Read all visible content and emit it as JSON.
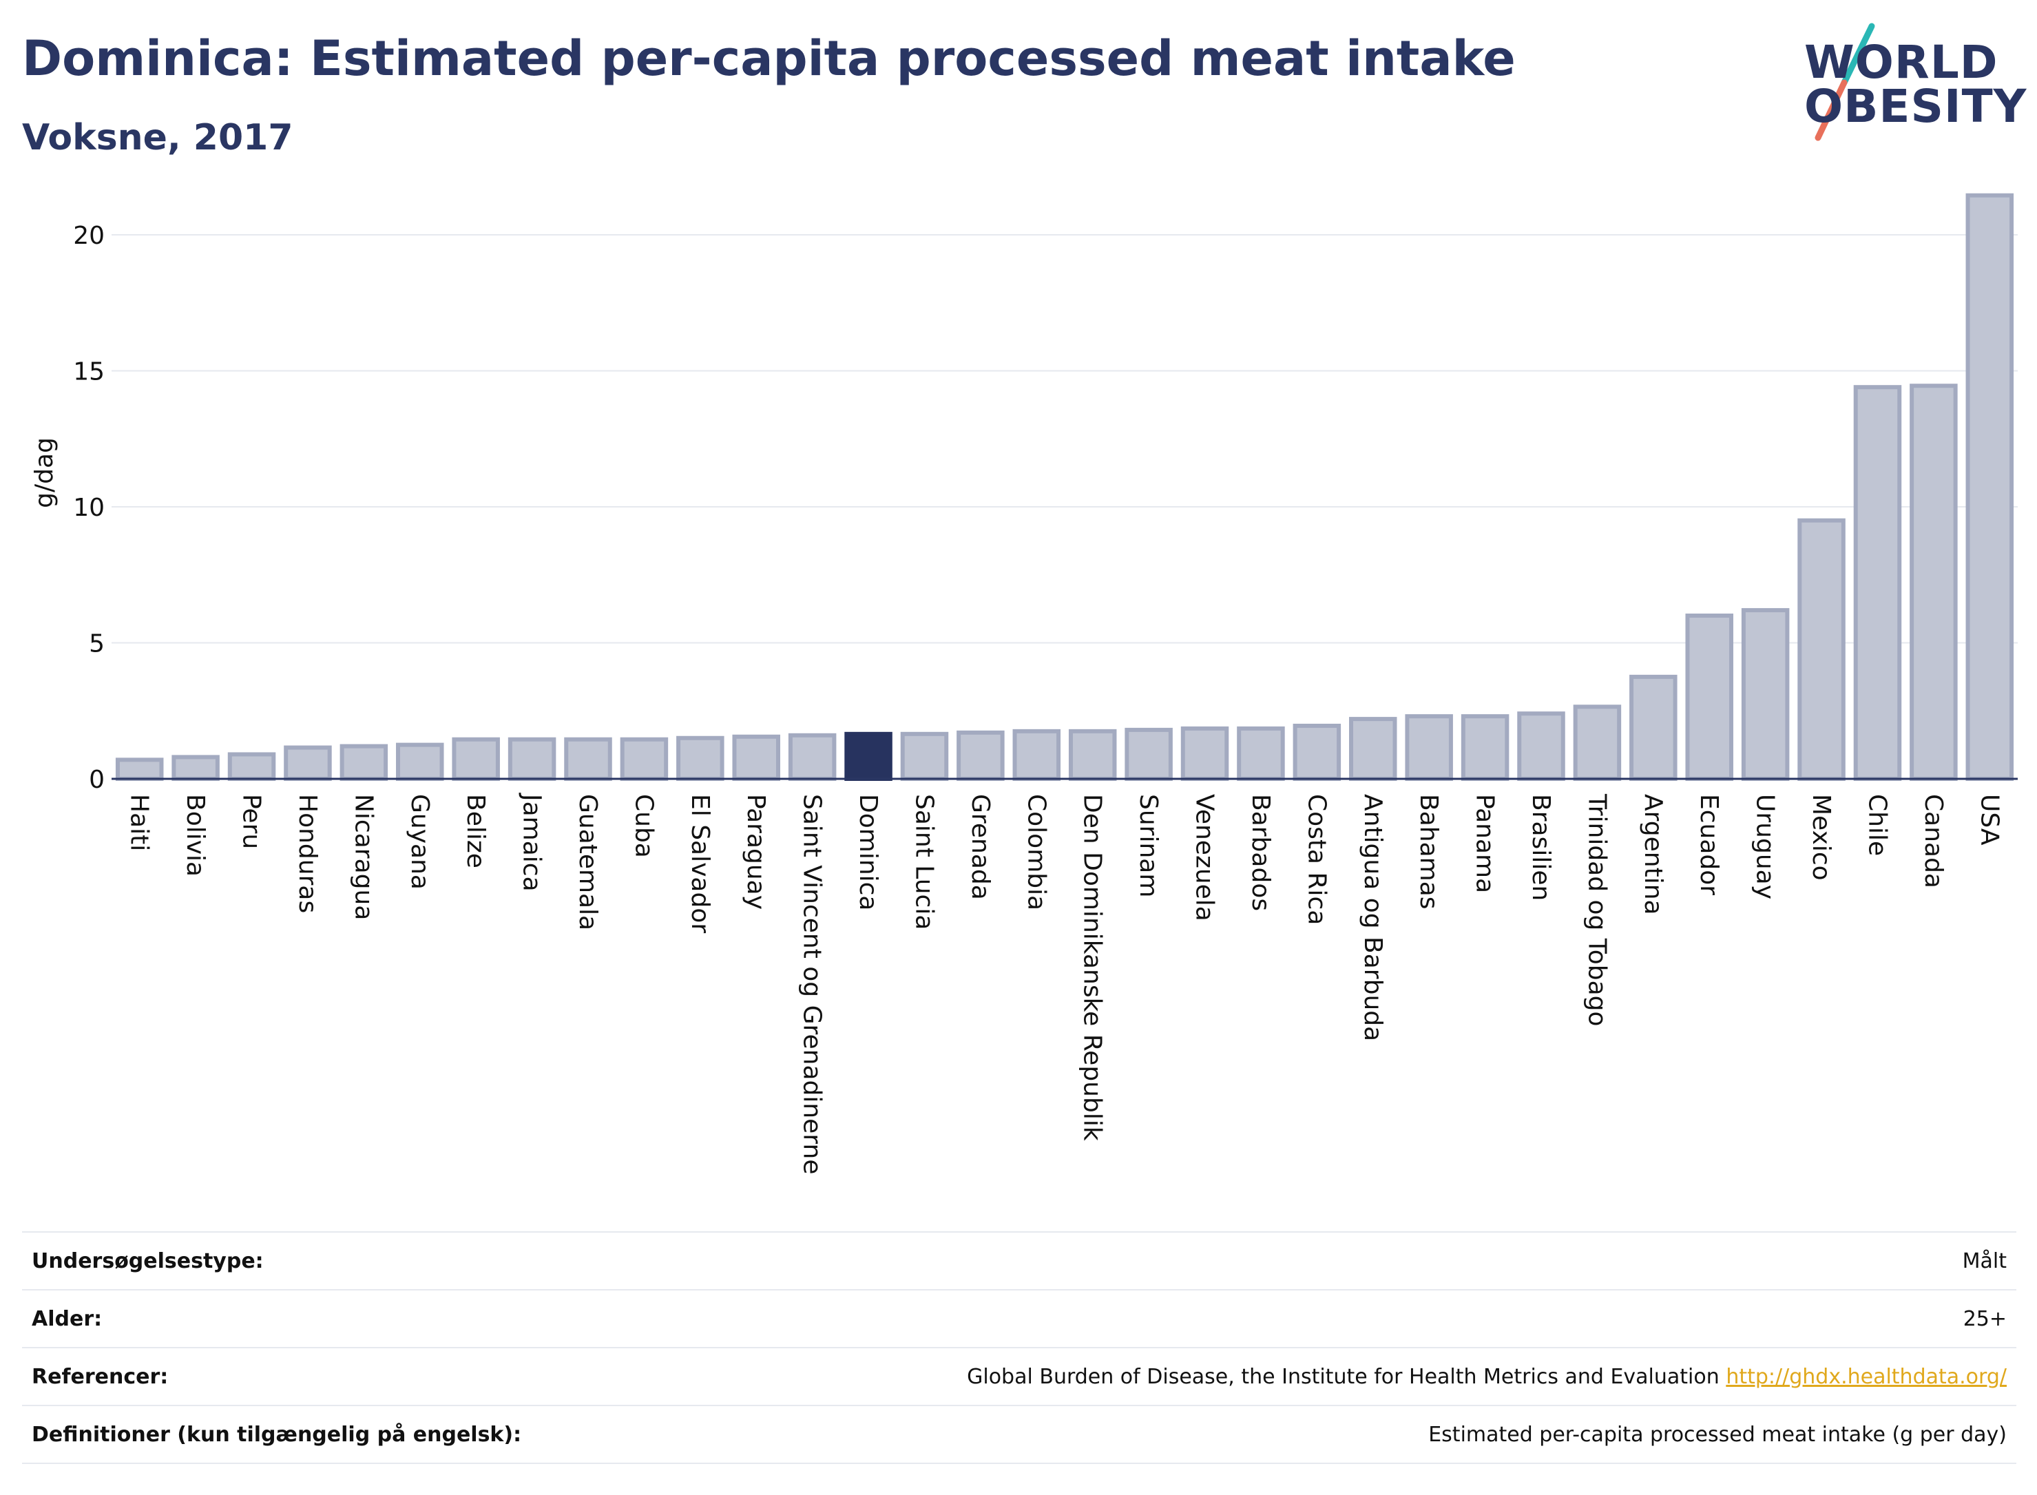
{
  "header": {
    "title": "Dominica: Estimated per-capita processed meat intake",
    "subtitle": "Voksne, 2017"
  },
  "logo": {
    "line1": "WORLD",
    "line2": "OBESITY",
    "colors": {
      "text": "#2a3663",
      "slash_top": "#2ab7b5",
      "slash_bottom": "#e8705b"
    }
  },
  "colors": {
    "highlight": "#27335f",
    "bar_fill": "#c0c5d3",
    "bar_stroke": "#a3aac0",
    "grid": "#e6e9ef",
    "axis": "#2a3663",
    "link": "#e0a81c"
  },
  "chart_data": {
    "type": "bar",
    "ylabel": "g/dag",
    "ylim": [
      0,
      22
    ],
    "yticks": [
      0,
      5,
      10,
      15,
      20
    ],
    "grid": true,
    "highlight": "Dominica",
    "categories": [
      "Haiti",
      "Bolivia",
      "Peru",
      "Honduras",
      "Nicaragua",
      "Guyana",
      "Belize",
      "Jamaica",
      "Guatemala",
      "Cuba",
      "El Salvador",
      "Paraguay",
      "Saint Vincent og Grenadinerne",
      "Dominica",
      "Saint Lucia",
      "Grenada",
      "Colombia",
      "Den Dominikanske Republik",
      "Surinam",
      "Venezuela",
      "Barbados",
      "Costa Rica",
      "Antigua og Barbuda",
      "Bahamas",
      "Panama",
      "Brasilien",
      "Trinidad og Tobago",
      "Argentina",
      "Ecuador",
      "Uruguay",
      "Mexico",
      "Chile",
      "Canada",
      "USA"
    ],
    "values": [
      0.7,
      0.8,
      0.9,
      1.15,
      1.2,
      1.25,
      1.45,
      1.45,
      1.45,
      1.45,
      1.5,
      1.55,
      1.6,
      1.65,
      1.65,
      1.7,
      1.75,
      1.75,
      1.8,
      1.85,
      1.85,
      1.95,
      2.2,
      2.3,
      2.3,
      2.4,
      2.65,
      3.75,
      6.0,
      6.2,
      9.5,
      14.4,
      14.45,
      21.45
    ]
  },
  "meta": [
    {
      "label": "Undersøgelsestype:",
      "value": "Målt"
    },
    {
      "label": "Alder:",
      "value": "25+"
    },
    {
      "label": "Referencer:",
      "value": "Global Burden of Disease, the Institute for Health Metrics and Evaluation",
      "link": "http://ghdx.healthdata.org/"
    },
    {
      "label": "Definitioner (kun tilgængelig på engelsk):",
      "value": "Estimated per-capita processed meat intake (g per day)"
    }
  ]
}
